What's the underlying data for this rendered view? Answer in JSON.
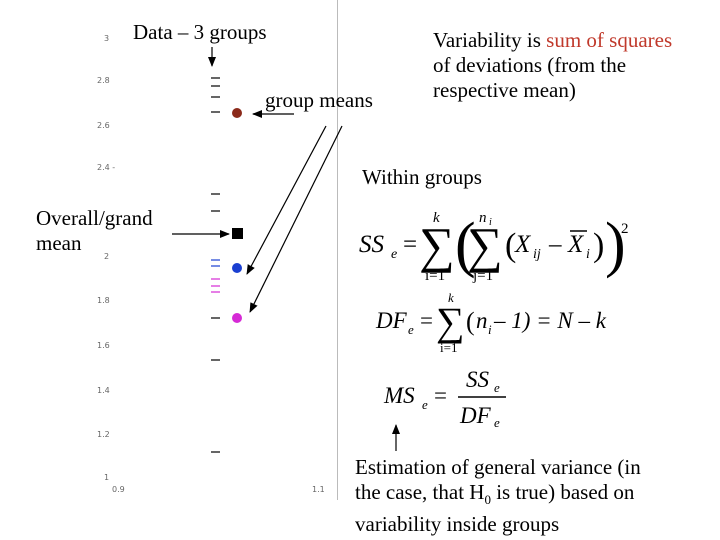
{
  "title": "Data – 3 groups",
  "labels": {
    "group_means": "group means",
    "overall_line1": "Overall/grand",
    "overall_line2": "mean",
    "within": "Within groups",
    "variability_pre": "Variability is ",
    "variability_red": "sum of squares",
    "variability_line2": "of deviations (from the",
    "variability_line3": "respective mean)",
    "estimation_line1": "Estimation of general variance (in",
    "estimation_line2_pre": "the case, that H",
    "estimation_line2_sub": "0",
    "estimation_line2_post": " is true) based on",
    "estimation_line3": "variability inside groups"
  },
  "axis": {
    "y_ticks": [
      "3",
      "2.8",
      "2.6",
      "2.4 -",
      "2",
      "1.8",
      "1.6",
      "1.4",
      "1.2",
      "1"
    ],
    "x_ticks": [
      "0.9",
      "1.1"
    ]
  },
  "formulas": {
    "sse": {
      "lhs": "SS",
      "lhs_sub": "e",
      "upper_outer": "k",
      "lower_outer": "i=1",
      "upper_inner": "n",
      "upper_inner_sub": "i",
      "lower_inner": "j=1",
      "x": "X",
      "x_sub": "ij",
      "xbar": "X",
      "xbar_sub": "i",
      "power": "2"
    },
    "dfe": {
      "lhs": "DF",
      "lhs_sub": "e",
      "upper": "k",
      "lower": "i=1",
      "n": "n",
      "n_sub": "i",
      "rest": " – 1) = N – k"
    },
    "mse": {
      "lhs": "MS",
      "lhs_sub": "e",
      "num": "SS",
      "num_sub": "e",
      "den": "DF",
      "den_sub": "e"
    }
  },
  "colors": {
    "group1": "#8b2a1a",
    "group2": "#1a3fd1",
    "group3": "#d62ad6",
    "grand": "#000000",
    "red_text": "#c0392b"
  }
}
